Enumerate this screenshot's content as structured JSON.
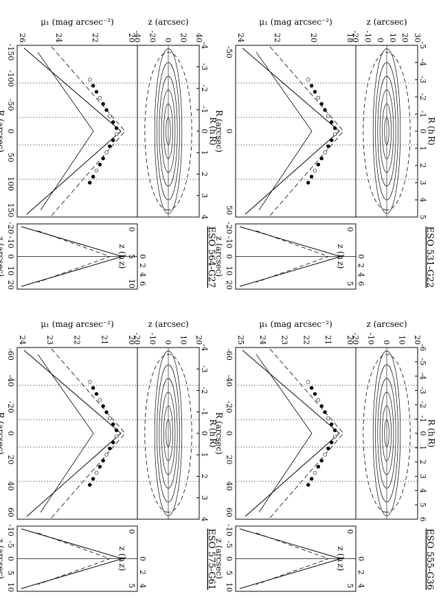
{
  "figure": {
    "panels": [
      {
        "id": "p1",
        "title": "ESO 531-G22",
        "top_axis_label": "R (h R)",
        "top_ticks": [
          "-5",
          "-4",
          "-3",
          "-2",
          "-1",
          "0",
          "1",
          "2",
          "3",
          "4",
          "5"
        ],
        "bottom_axis_label": "R (arcsec)",
        "bottom_ticks": [
          "-50",
          "0",
          "50"
        ],
        "contour_ylabel": "z (arcsec)",
        "contour_yticks": [
          "-20",
          "-10",
          "0",
          "10",
          "20",
          "30"
        ],
        "profile_ylabel": "μ₁ (mag arcsec⁻²)",
        "profile_yticks": [
          "24",
          "22",
          "20",
          "18"
        ],
        "vert_top_label": "z (h z)",
        "vert_top_ticks": [
          "0",
          "5"
        ],
        "vert_bottom_label": "z (arcsec)",
        "vert_bottom_ticks": [
          "-20",
          "-10",
          "0",
          "10",
          "20"
        ],
        "vert_mid_ticks": [
          "0",
          "2",
          "4",
          "6"
        ]
      },
      {
        "id": "p2",
        "title": "ESO 555-G36",
        "top_axis_label": "R (h R)",
        "top_ticks": [
          "-6",
          "-5",
          "-4",
          "-3",
          "-2",
          "-1",
          "0",
          "1",
          "2",
          "3",
          "4",
          "5",
          "6"
        ],
        "bottom_axis_label": "R (arcsec)",
        "bottom_ticks": [
          "-60",
          "-40",
          "-20",
          "0",
          "20",
          "40",
          "60"
        ],
        "contour_ylabel": "z (arcsec)",
        "contour_yticks": [
          "-20",
          "-10",
          "0",
          "10",
          "20"
        ],
        "profile_ylabel": "μ₁ (mag arcsec⁻²)",
        "profile_yticks": [
          "25",
          "24",
          "23",
          "22",
          "21",
          "20"
        ],
        "vert_top_label": "z (h z)",
        "vert_top_ticks": [
          "0",
          "5"
        ],
        "vert_bottom_label": "z (arcsec)",
        "vert_bottom_ticks": [
          "-10",
          "-5",
          "0",
          "5",
          "10"
        ],
        "vert_mid_ticks": [
          "0",
          "2",
          "4"
        ]
      },
      {
        "id": "p3",
        "title": "ESO 564-G27",
        "top_axis_label": "R (h R)",
        "top_ticks": [
          "-4",
          "-3",
          "-2",
          "-1",
          "0",
          "1",
          "2",
          "3",
          "4"
        ],
        "bottom_axis_label": "R (arcsec)",
        "bottom_ticks": [
          "-150",
          "-100",
          "-50",
          "0",
          "50",
          "100",
          "150"
        ],
        "contour_ylabel": "z (arcsec)",
        "contour_yticks": [
          "-40",
          "-20",
          "0",
          "20",
          "40"
        ],
        "profile_ylabel": "μ₁ (mag arcsec⁻²)",
        "profile_yticks": [
          "26",
          "24",
          "22",
          "20"
        ],
        "vert_top_label": "z (h z)",
        "vert_top_ticks": [
          "0",
          "5",
          "10"
        ],
        "vert_bottom_label": "z (arcsec)",
        "vert_bottom_ticks": [
          "-20",
          "-10",
          "0",
          "10",
          "20"
        ],
        "vert_mid_ticks": [
          "0",
          "2",
          "4",
          "6"
        ]
      },
      {
        "id": "p4",
        "title": "ESO 575-G61",
        "top_axis_label": "R (h R)",
        "top_ticks": [
          "-4",
          "-3",
          "-2",
          "-1",
          "0",
          "1",
          "2",
          "3",
          "4"
        ],
        "bottom_axis_label": "R (arcsec)",
        "bottom_ticks": [
          "-60",
          "-40",
          "-20",
          "0",
          "20",
          "40",
          "60"
        ],
        "contour_ylabel": "z (arcsec)",
        "contour_yticks": [
          "-20",
          "-10",
          "0",
          "10",
          "20"
        ],
        "profile_ylabel": "μ₁ (mag arcsec⁻²)",
        "profile_yticks": [
          "24",
          "23",
          "22",
          "21",
          "20"
        ],
        "vert_top_label": "z (h z)",
        "vert_top_ticks": [
          "0",
          "5"
        ],
        "vert_bottom_label": "z (arcsec)",
        "vert_bottom_ticks": [
          "-10",
          "-5",
          "0",
          "5",
          "10"
        ],
        "vert_mid_ticks": [
          "0",
          "2",
          "4"
        ]
      }
    ]
  }
}
